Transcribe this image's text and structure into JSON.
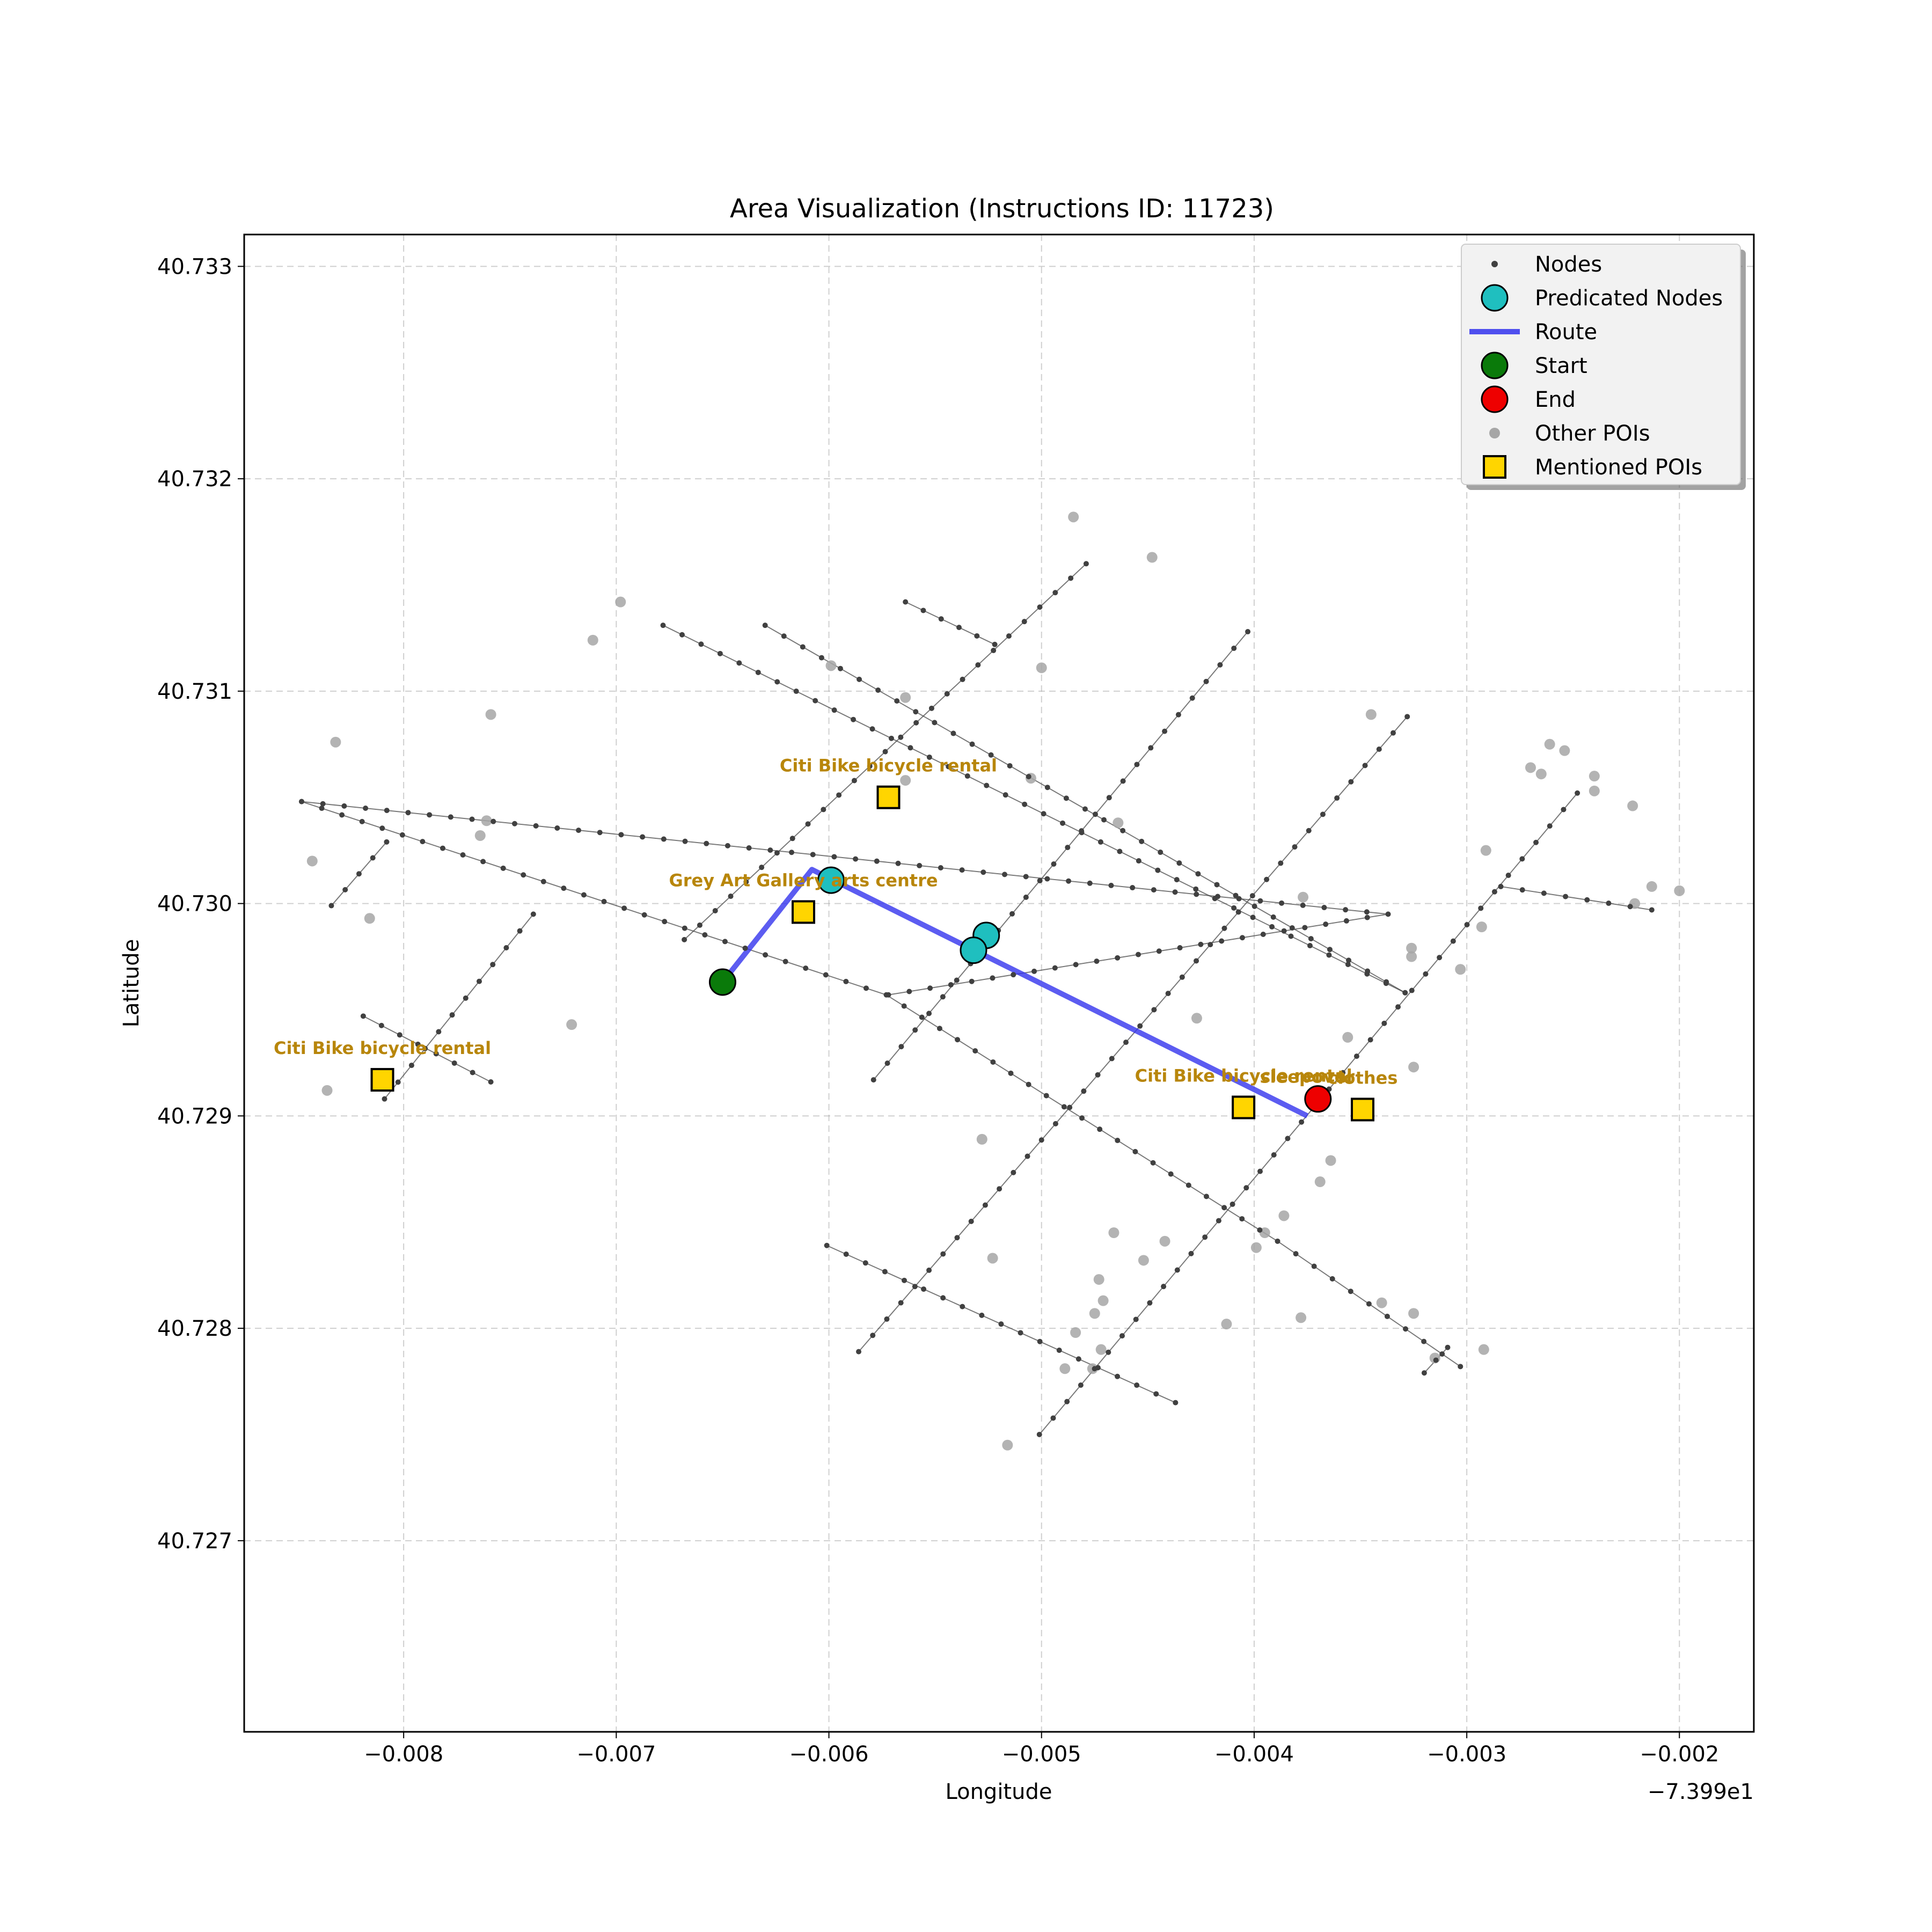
{
  "chart_data": {
    "type": "scatter",
    "title": "Area Visualization (Instructions ID: 11723)",
    "xlabel": "Longitude",
    "ylabel": "Latitude",
    "x_offset_label": "−7.399e1",
    "xlim": [
      -0.00875,
      -0.00165
    ],
    "ylim": [
      40.7261,
      40.73315
    ],
    "x_ticks": [
      -0.008,
      -0.007,
      -0.006,
      -0.005,
      -0.004,
      -0.003,
      -0.002
    ],
    "x_tick_labels": [
      "−0.008",
      "−0.007",
      "−0.006",
      "−0.005",
      "−0.004",
      "−0.003",
      "−0.002"
    ],
    "y_ticks": [
      40.727,
      40.728,
      40.729,
      40.73,
      40.731,
      40.732,
      40.733
    ],
    "y_tick_labels": [
      "40.727",
      "40.728",
      "40.729",
      "40.730",
      "40.731",
      "40.732",
      "40.733"
    ],
    "grid": true,
    "legend_position": "top-right",
    "colors": {
      "nodes": "#404040",
      "predicated": "#1fbfbf",
      "route": "#3333ee",
      "start": "#0a7a0a",
      "end": "#ee0000",
      "other_poi": "#a6a6a6",
      "mentioned_poi": "#ffd500",
      "poi_label": "#b8860b"
    },
    "legend": [
      {
        "label": "Nodes",
        "marker": "small-dot"
      },
      {
        "label": "Predicated Nodes",
        "marker": "cyan-circle"
      },
      {
        "label": "Route",
        "marker": "blue-line"
      },
      {
        "label": "Start",
        "marker": "green-circle"
      },
      {
        "label": "End",
        "marker": "red-circle"
      },
      {
        "label": "Other POIs",
        "marker": "gray-dot"
      },
      {
        "label": "Mentioned POIs",
        "marker": "yellow-square"
      }
    ],
    "streets": [
      [
        [
          -0.00848,
          40.73048
        ],
        [
          -0.00337,
          40.72995
        ],
        [
          -0.00572,
          40.72957
        ]
      ],
      [
        [
          -0.00848,
          40.73048
        ],
        [
          -0.00573,
          40.72957
        ],
        [
          -0.00389,
          40.72841
        ],
        [
          -0.00303,
          40.72782
        ]
      ],
      [
        [
          -0.00678,
          40.73131
        ],
        [
          -0.00329,
          40.72958
        ]
      ],
      [
        [
          -0.0063,
          40.73131
        ],
        [
          -0.00329,
          40.72958
        ]
      ],
      [
        [
          -0.00564,
          40.73142
        ],
        [
          -0.00522,
          40.73122
        ]
      ],
      [
        [
          -0.00601,
          40.72839
        ],
        [
          -0.00437,
          40.72765
        ]
      ],
      [
        [
          -0.00819,
          40.72947
        ],
        [
          -0.00759,
          40.72916
        ]
      ],
      [
        [
          -0.00834,
          40.72999
        ],
        [
          -0.00808,
          40.73029
        ]
      ],
      [
        [
          -0.00809,
          40.72908
        ],
        [
          -0.00739,
          40.72995
        ]
      ],
      [
        [
          -0.00668,
          40.72983
        ],
        [
          -0.00479,
          40.7316
        ]
      ],
      [
        [
          -0.00579,
          40.72917
        ],
        [
          -0.00403,
          40.73128
        ]
      ],
      [
        [
          -0.00586,
          40.72789
        ],
        [
          -0.00328,
          40.73088
        ]
      ],
      [
        [
          -0.00501,
          40.7275
        ],
        [
          -0.00248,
          40.73052
        ]
      ],
      [
        [
          -0.0032,
          40.72779
        ],
        [
          -0.00309,
          40.72791
        ]
      ],
      [
        [
          -0.00284,
          40.73008
        ],
        [
          -0.00213,
          40.72997
        ]
      ]
    ],
    "route": [
      [
        -0.0065,
        40.72963
      ],
      [
        -0.00608,
        40.73016
      ],
      [
        -0.00375,
        40.729
      ]
    ],
    "start": [
      -0.0065,
      40.72963
    ],
    "end": [
      -0.0037,
      40.72908
    ],
    "predicated_nodes": [
      [
        -0.00599,
        40.73011
      ],
      [
        -0.00526,
        40.72985
      ],
      [
        -0.00532,
        40.72978
      ]
    ],
    "mentioned_pois": [
      {
        "x": -0.00572,
        "y": 40.7305,
        "label": "Citi Bike bicycle rental"
      },
      {
        "x": -0.00612,
        "y": 40.72996,
        "label": "Grey Art Gallery arts centre"
      },
      {
        "x": -0.0081,
        "y": 40.72917,
        "label": "Citi Bike bicycle rental"
      },
      {
        "x": -0.00405,
        "y": 40.72904,
        "label": "Citi Bike bicycle rental"
      },
      {
        "x": -0.00349,
        "y": 40.72903,
        "label": "clothes"
      }
    ],
    "overlap_label": "sleepover",
    "other_pois": [
      [
        -0.00485,
        40.73182
      ],
      [
        -0.00448,
        40.73163
      ],
      [
        -0.00698,
        40.73142
      ],
      [
        -0.00711,
        40.73124
      ],
      [
        -0.00599,
        40.73112
      ],
      [
        -0.005,
        40.73111
      ],
      [
        -0.00564,
        40.73097
      ],
      [
        -0.00759,
        40.73089
      ],
      [
        -0.00832,
        40.73076
      ],
      [
        -0.00345,
        40.73089
      ],
      [
        -0.00261,
        40.73075
      ],
      [
        -0.00254,
        40.73072
      ],
      [
        -0.0027,
        40.73064
      ],
      [
        -0.00265,
        40.73061
      ],
      [
        -0.0024,
        40.7306
      ],
      [
        -0.00564,
        40.73058
      ],
      [
        -0.00505,
        40.73059
      ],
      [
        -0.0024,
        40.73053
      ],
      [
        -0.00222,
        40.73046
      ],
      [
        -0.00761,
        40.73039
      ],
      [
        -0.00464,
        40.73038
      ],
      [
        -0.00764,
        40.73032
      ],
      [
        -0.00843,
        40.7302
      ],
      [
        -0.00291,
        40.73025
      ],
      [
        -0.00213,
        40.73008
      ],
      [
        -0.002,
        40.73006
      ],
      [
        -0.00221,
        40.73
      ],
      [
        -0.00377,
        40.73003
      ],
      [
        -0.00816,
        40.72993
      ],
      [
        -0.00293,
        40.72989
      ],
      [
        -0.00326,
        40.72979
      ],
      [
        -0.00326,
        40.72975
      ],
      [
        -0.00303,
        40.72969
      ],
      [
        -0.00427,
        40.72946
      ],
      [
        -0.00721,
        40.72943
      ],
      [
        -0.00356,
        40.72937
      ],
      [
        -0.00325,
        40.72923
      ],
      [
        -0.00836,
        40.72912
      ],
      [
        -0.00528,
        40.72889
      ],
      [
        -0.00364,
        40.72879
      ],
      [
        -0.00369,
        40.72869
      ],
      [
        -0.00386,
        40.72853
      ],
      [
        -0.00466,
        40.72845
      ],
      [
        -0.00395,
        40.72845
      ],
      [
        -0.00442,
        40.72841
      ],
      [
        -0.00399,
        40.72838
      ],
      [
        -0.00523,
        40.72833
      ],
      [
        -0.00452,
        40.72832
      ],
      [
        -0.00473,
        40.72823
      ],
      [
        -0.00471,
        40.72813
      ],
      [
        -0.0034,
        40.72812
      ],
      [
        -0.00325,
        40.72807
      ],
      [
        -0.00475,
        40.72807
      ],
      [
        -0.00378,
        40.72805
      ],
      [
        -0.00413,
        40.72802
      ],
      [
        -0.00484,
        40.72798
      ],
      [
        -0.00472,
        40.7279
      ],
      [
        -0.00292,
        40.7279
      ],
      [
        -0.00476,
        40.72781
      ],
      [
        -0.00489,
        40.72781
      ],
      [
        -0.00315,
        40.72786
      ],
      [
        -0.00516,
        40.72745
      ]
    ]
  }
}
